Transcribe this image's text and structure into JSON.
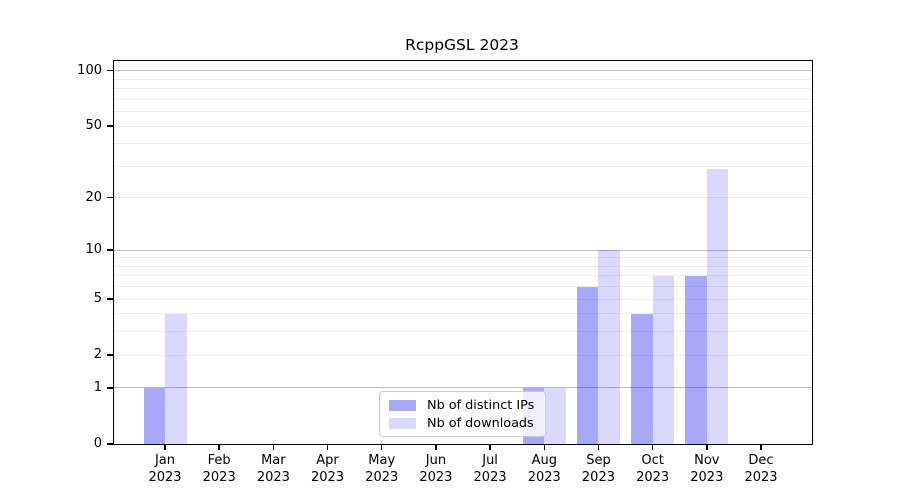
{
  "figure": {
    "title": "RcppGSL 2023"
  },
  "chart_data": {
    "type": "bar",
    "title": "RcppGSL 2023",
    "categories": [
      "Jan 2023",
      "Feb 2023",
      "Mar 2023",
      "Apr 2023",
      "May 2023",
      "Jun 2023",
      "Jul 2023",
      "Aug 2023",
      "Sep 2023",
      "Oct 2023",
      "Nov 2023",
      "Dec 2023"
    ],
    "months": [
      "Jan",
      "Feb",
      "Mar",
      "Apr",
      "May",
      "Jun",
      "Jul",
      "Aug",
      "Sep",
      "Oct",
      "Nov",
      "Dec"
    ],
    "year": "2023",
    "series": [
      {
        "name": "Nb of distinct IPs",
        "color": "rgba(0,0,238,0.34)",
        "values": [
          1,
          0,
          0,
          0,
          0,
          0,
          0,
          1,
          6,
          4,
          7,
          0
        ]
      },
      {
        "name": "Nb of downloads",
        "color": "rgba(0,0,238,0.15)",
        "values": [
          4,
          0,
          0,
          0,
          0,
          0,
          0,
          1,
          10,
          7,
          29,
          0
        ]
      }
    ],
    "xlabel": "",
    "ylabel": "",
    "yscale": "log1p",
    "yticks": [
      0,
      1,
      2,
      5,
      10,
      20,
      50,
      100
    ],
    "ylim": [
      0,
      113
    ],
    "grid": {
      "major_values": [
        1,
        10,
        100
      ],
      "minor_values": [
        2,
        3,
        4,
        5,
        6,
        7,
        8,
        9,
        20,
        30,
        40,
        50,
        60,
        70,
        80,
        90
      ],
      "major_color": "#bcbcbc",
      "minor_color": "#ededed"
    },
    "legend": {
      "position": "lower center",
      "items": [
        "Nb of distinct IPs",
        "Nb of downloads"
      ]
    }
  }
}
